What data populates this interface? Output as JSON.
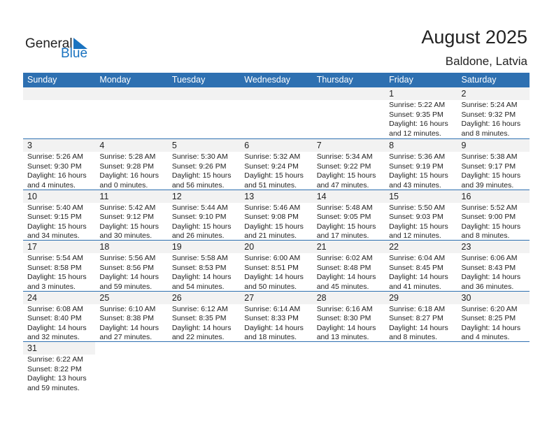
{
  "logo": {
    "text_general": "General",
    "text_blue": "Blue"
  },
  "title": "August 2025",
  "location": "Baldone, Latvia",
  "accent": "#2e70b1",
  "weekdays": [
    "Sunday",
    "Monday",
    "Tuesday",
    "Wednesday",
    "Thursday",
    "Friday",
    "Saturday"
  ],
  "first_weekday_index": 5,
  "days": [
    [
      "1",
      "Sunrise: 5:22 AM",
      "Sunset: 9:35 PM",
      "Daylight: 16 hours",
      "and 12 minutes."
    ],
    [
      "2",
      "Sunrise: 5:24 AM",
      "Sunset: 9:32 PM",
      "Daylight: 16 hours",
      "and 8 minutes."
    ],
    [
      "3",
      "Sunrise: 5:26 AM",
      "Sunset: 9:30 PM",
      "Daylight: 16 hours",
      "and 4 minutes."
    ],
    [
      "4",
      "Sunrise: 5:28 AM",
      "Sunset: 9:28 PM",
      "Daylight: 16 hours",
      "and 0 minutes."
    ],
    [
      "5",
      "Sunrise: 5:30 AM",
      "Sunset: 9:26 PM",
      "Daylight: 15 hours",
      "and 56 minutes."
    ],
    [
      "6",
      "Sunrise: 5:32 AM",
      "Sunset: 9:24 PM",
      "Daylight: 15 hours",
      "and 51 minutes."
    ],
    [
      "7",
      "Sunrise: 5:34 AM",
      "Sunset: 9:22 PM",
      "Daylight: 15 hours",
      "and 47 minutes."
    ],
    [
      "8",
      "Sunrise: 5:36 AM",
      "Sunset: 9:19 PM",
      "Daylight: 15 hours",
      "and 43 minutes."
    ],
    [
      "9",
      "Sunrise: 5:38 AM",
      "Sunset: 9:17 PM",
      "Daylight: 15 hours",
      "and 39 minutes."
    ],
    [
      "10",
      "Sunrise: 5:40 AM",
      "Sunset: 9:15 PM",
      "Daylight: 15 hours",
      "and 34 minutes."
    ],
    [
      "11",
      "Sunrise: 5:42 AM",
      "Sunset: 9:12 PM",
      "Daylight: 15 hours",
      "and 30 minutes."
    ],
    [
      "12",
      "Sunrise: 5:44 AM",
      "Sunset: 9:10 PM",
      "Daylight: 15 hours",
      "and 26 minutes."
    ],
    [
      "13",
      "Sunrise: 5:46 AM",
      "Sunset: 9:08 PM",
      "Daylight: 15 hours",
      "and 21 minutes."
    ],
    [
      "14",
      "Sunrise: 5:48 AM",
      "Sunset: 9:05 PM",
      "Daylight: 15 hours",
      "and 17 minutes."
    ],
    [
      "15",
      "Sunrise: 5:50 AM",
      "Sunset: 9:03 PM",
      "Daylight: 15 hours",
      "and 12 minutes."
    ],
    [
      "16",
      "Sunrise: 5:52 AM",
      "Sunset: 9:00 PM",
      "Daylight: 15 hours",
      "and 8 minutes."
    ],
    [
      "17",
      "Sunrise: 5:54 AM",
      "Sunset: 8:58 PM",
      "Daylight: 15 hours",
      "and 3 minutes."
    ],
    [
      "18",
      "Sunrise: 5:56 AM",
      "Sunset: 8:56 PM",
      "Daylight: 14 hours",
      "and 59 minutes."
    ],
    [
      "19",
      "Sunrise: 5:58 AM",
      "Sunset: 8:53 PM",
      "Daylight: 14 hours",
      "and 54 minutes."
    ],
    [
      "20",
      "Sunrise: 6:00 AM",
      "Sunset: 8:51 PM",
      "Daylight: 14 hours",
      "and 50 minutes."
    ],
    [
      "21",
      "Sunrise: 6:02 AM",
      "Sunset: 8:48 PM",
      "Daylight: 14 hours",
      "and 45 minutes."
    ],
    [
      "22",
      "Sunrise: 6:04 AM",
      "Sunset: 8:45 PM",
      "Daylight: 14 hours",
      "and 41 minutes."
    ],
    [
      "23",
      "Sunrise: 6:06 AM",
      "Sunset: 8:43 PM",
      "Daylight: 14 hours",
      "and 36 minutes."
    ],
    [
      "24",
      "Sunrise: 6:08 AM",
      "Sunset: 8:40 PM",
      "Daylight: 14 hours",
      "and 32 minutes."
    ],
    [
      "25",
      "Sunrise: 6:10 AM",
      "Sunset: 8:38 PM",
      "Daylight: 14 hours",
      "and 27 minutes."
    ],
    [
      "26",
      "Sunrise: 6:12 AM",
      "Sunset: 8:35 PM",
      "Daylight: 14 hours",
      "and 22 minutes."
    ],
    [
      "27",
      "Sunrise: 6:14 AM",
      "Sunset: 8:33 PM",
      "Daylight: 14 hours",
      "and 18 minutes."
    ],
    [
      "28",
      "Sunrise: 6:16 AM",
      "Sunset: 8:30 PM",
      "Daylight: 14 hours",
      "and 13 minutes."
    ],
    [
      "29",
      "Sunrise: 6:18 AM",
      "Sunset: 8:27 PM",
      "Daylight: 14 hours",
      "and 8 minutes."
    ],
    [
      "30",
      "Sunrise: 6:20 AM",
      "Sunset: 8:25 PM",
      "Daylight: 14 hours",
      "and 4 minutes."
    ],
    [
      "31",
      "Sunrise: 6:22 AM",
      "Sunset: 8:22 PM",
      "Daylight: 13 hours",
      "and 59 minutes."
    ]
  ]
}
